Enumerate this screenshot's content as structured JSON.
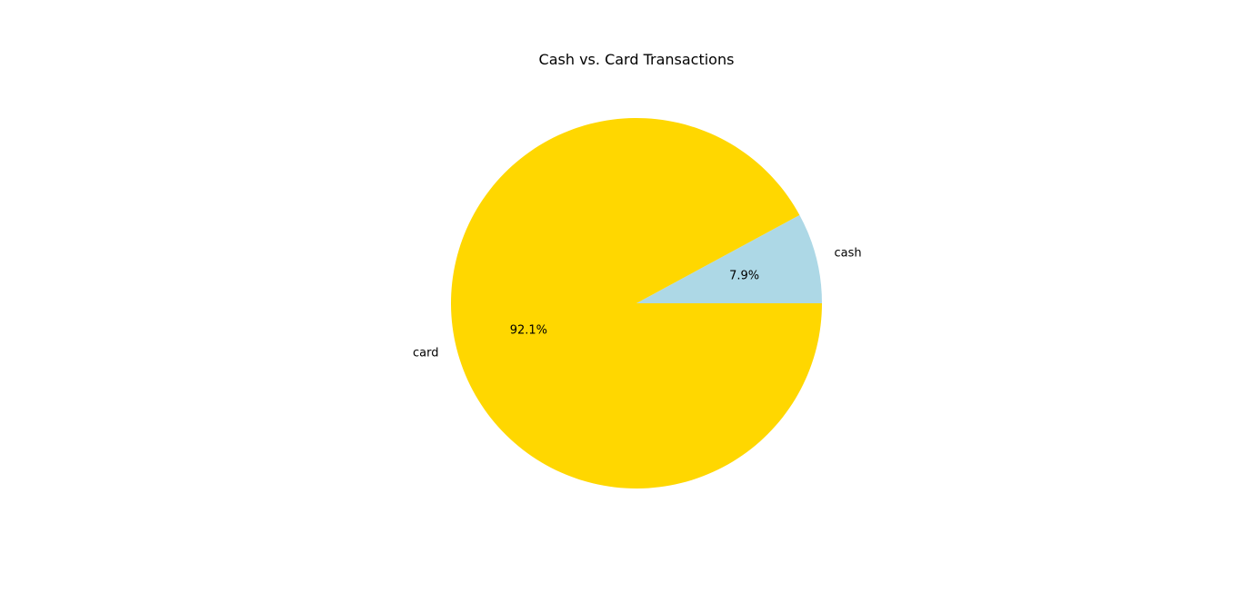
{
  "chart_data": {
    "type": "pie",
    "title": "Cash vs. Card Transactions",
    "slices": [
      {
        "label": "cash",
        "value": 7.9,
        "pct_label": "7.9%",
        "color": "#ADD8E6"
      },
      {
        "label": "card",
        "value": 92.1,
        "pct_label": "92.1%",
        "color": "#FFD700"
      }
    ],
    "start_angle_deg": 0,
    "direction": "counterclockwise"
  }
}
